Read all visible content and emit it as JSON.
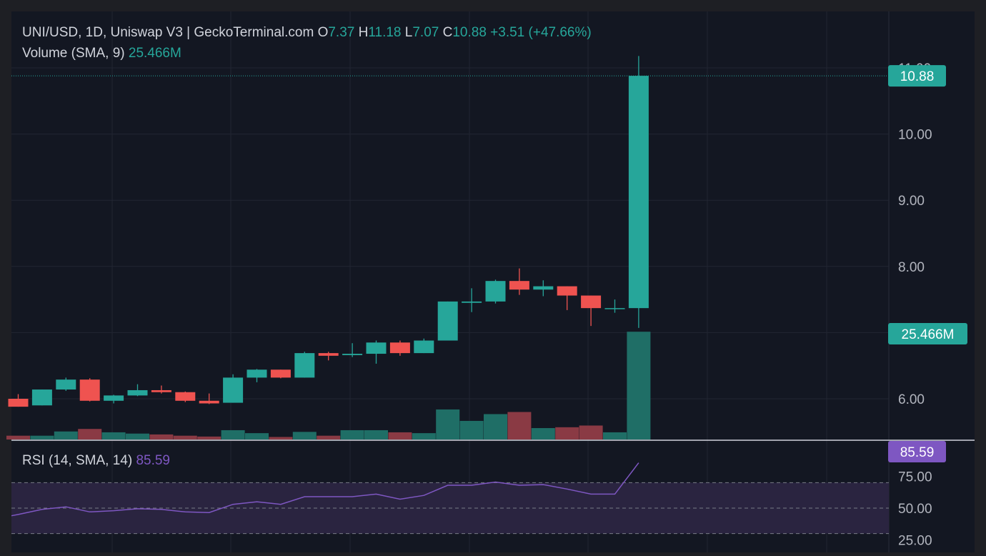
{
  "header": {
    "symbol": "UNI/USD, 1D, Uniswap V3 | GeckoTerminal.com",
    "o_label": "O",
    "o_value": "7.37",
    "h_label": "H",
    "h_value": "11.18",
    "l_label": "L",
    "l_value": "7.07",
    "c_label": "C",
    "c_value": "10.88",
    "change": "+3.51 (+47.66%)",
    "volume_label": "Volume (SMA, 9)",
    "volume_value": "25.466M"
  },
  "rsi": {
    "label": "RSI (14, SMA, 14)",
    "value": "85.59"
  },
  "colors": {
    "background": "#131722",
    "frame": "#1e1f24",
    "up": "#26a69a",
    "down": "#ef5350",
    "up_volume": "#1f6e66",
    "down_volume": "#8a3a44",
    "rsi_line": "#7e57c2",
    "rsi_band": "#2a2440",
    "text": "#d1d4dc",
    "axis_text": "#b2b5be",
    "grid": "#222632"
  },
  "chart_data": {
    "type": "candlestick",
    "price_axis": {
      "ticks": [
        "11.00",
        "10.00",
        "9.00",
        "8.00",
        "6.00"
      ],
      "ylim": [
        5.4,
        11.25
      ],
      "last_price_label": "10.88",
      "last_price": 10.88,
      "volume_label": "25.466M"
    },
    "candles": [
      {
        "o": 6.0,
        "h": 6.07,
        "l": 5.88,
        "c": 5.88
      },
      {
        "o": 5.9,
        "h": 6.14,
        "l": 5.9,
        "c": 6.14
      },
      {
        "o": 6.14,
        "h": 6.32,
        "l": 6.12,
        "c": 6.29
      },
      {
        "o": 6.29,
        "h": 6.31,
        "l": 5.96,
        "c": 5.97
      },
      {
        "o": 5.97,
        "h": 6.06,
        "l": 5.93,
        "c": 6.05
      },
      {
        "o": 6.05,
        "h": 6.22,
        "l": 6.04,
        "c": 6.13
      },
      {
        "o": 6.13,
        "h": 6.2,
        "l": 6.08,
        "c": 6.1
      },
      {
        "o": 6.1,
        "h": 6.11,
        "l": 5.95,
        "c": 5.97
      },
      {
        "o": 5.97,
        "h": 6.08,
        "l": 5.92,
        "c": 5.93
      },
      {
        "o": 5.94,
        "h": 6.37,
        "l": 5.94,
        "c": 6.32
      },
      {
        "o": 6.32,
        "h": 6.45,
        "l": 6.25,
        "c": 6.44
      },
      {
        "o": 6.44,
        "h": 6.44,
        "l": 6.31,
        "c": 6.32
      },
      {
        "o": 6.32,
        "h": 6.71,
        "l": 6.32,
        "c": 6.69
      },
      {
        "o": 6.69,
        "h": 6.71,
        "l": 6.58,
        "c": 6.65
      },
      {
        "o": 6.66,
        "h": 6.84,
        "l": 6.63,
        "c": 6.68
      },
      {
        "o": 6.68,
        "h": 6.88,
        "l": 6.53,
        "c": 6.85
      },
      {
        "o": 6.85,
        "h": 6.88,
        "l": 6.65,
        "c": 6.69
      },
      {
        "o": 6.69,
        "h": 6.91,
        "l": 6.69,
        "c": 6.88
      },
      {
        "o": 6.88,
        "h": 7.47,
        "l": 6.88,
        "c": 7.47
      },
      {
        "o": 7.45,
        "h": 7.67,
        "l": 7.31,
        "c": 7.47
      },
      {
        "o": 7.47,
        "h": 7.8,
        "l": 7.44,
        "c": 7.78
      },
      {
        "o": 7.78,
        "h": 7.97,
        "l": 7.57,
        "c": 7.65
      },
      {
        "o": 7.65,
        "h": 7.79,
        "l": 7.55,
        "c": 7.7
      },
      {
        "o": 7.7,
        "h": 7.7,
        "l": 7.34,
        "c": 7.56
      },
      {
        "o": 7.56,
        "h": 7.56,
        "l": 7.1,
        "c": 7.37
      },
      {
        "o": 7.37,
        "h": 7.5,
        "l": 7.3,
        "c": 7.37
      },
      {
        "o": 7.37,
        "h": 11.18,
        "l": 7.07,
        "c": 10.88
      }
    ],
    "volume": [
      0.9,
      0.9,
      1.9,
      2.5,
      1.7,
      1.4,
      1.2,
      0.9,
      0.7,
      2.2,
      1.5,
      0.6,
      1.8,
      0.9,
      2.2,
      2.2,
      1.7,
      1.5,
      7.1,
      4.4,
      6.0,
      6.5,
      2.7,
      2.9,
      3.3,
      1.7,
      25.466
    ],
    "volume_ylim": [
      0,
      26
    ],
    "rsi_axis": {
      "ticks": [
        "75.00",
        "50.00",
        "25.00"
      ],
      "ylim": [
        20,
        87
      ],
      "bands": [
        70,
        50,
        30
      ],
      "value_label": "85.59"
    },
    "rsi_values": [
      45,
      49,
      51,
      47,
      48,
      49.5,
      49,
      47,
      46.5,
      53,
      55,
      53,
      59,
      59,
      59,
      61,
      57,
      60,
      68,
      68,
      70.5,
      68,
      68.5,
      65,
      61,
      61,
      85.59
    ]
  }
}
